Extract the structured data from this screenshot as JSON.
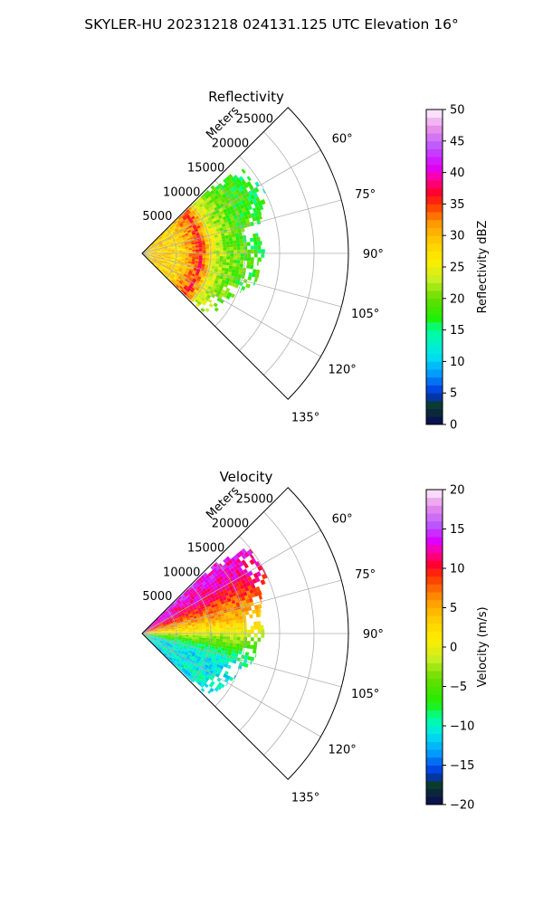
{
  "figure_title": "SKYLER-HU  20231218  024131.125 UTC Elevation 16°",
  "chart_data": [
    {
      "type": "heatmap",
      "projection": "polar-sector",
      "title": "Reflectivity",
      "radial_label": "Meters",
      "radial_ticks": [
        "5000",
        "10000",
        "15000",
        "20000",
        "25000"
      ],
      "radial_tick_values": [
        5000,
        10000,
        15000,
        20000,
        25000
      ],
      "r_max": 30000,
      "azimuth_range_deg": [
        45,
        135
      ],
      "azimuth_ticks": [
        "60°",
        "75°",
        "90°",
        "105°",
        "120°",
        "135°"
      ],
      "azimuth_tick_values": [
        60,
        75,
        90,
        105,
        120,
        135
      ],
      "data_azimuth_range_deg": [
        46,
        134
      ],
      "colorbar": {
        "label": "Reflectivity dBZ",
        "min": 0,
        "max": 50,
        "ticks": [
          "0",
          "5",
          "10",
          "15",
          "20",
          "25",
          "30",
          "35",
          "40",
          "45",
          "50"
        ],
        "tick_values": [
          0,
          5,
          10,
          15,
          20,
          25,
          30,
          35,
          40,
          45,
          50
        ],
        "stops": [
          [
            0,
            "#0a0a55"
          ],
          [
            3,
            "#0b3b2a"
          ],
          [
            5,
            "#0033dd"
          ],
          [
            8,
            "#0099ff"
          ],
          [
            11,
            "#00e5ee"
          ],
          [
            15,
            "#00ff99"
          ],
          [
            17,
            "#22ee00"
          ],
          [
            20,
            "#66dd00"
          ],
          [
            23,
            "#c8ee22"
          ],
          [
            26,
            "#ffee00"
          ],
          [
            29,
            "#ffcc00"
          ],
          [
            32,
            "#ff9900"
          ],
          [
            35,
            "#ff3300"
          ],
          [
            37,
            "#ff0033"
          ],
          [
            39,
            "#ff0099"
          ],
          [
            41,
            "#dd00ff"
          ],
          [
            44,
            "#bb55ff"
          ],
          [
            47,
            "#e890e8"
          ],
          [
            50,
            "#fff5ff"
          ]
        ]
      },
      "echo_extent": [
        {
          "azimuth": 47,
          "max_range_m": 15000
        },
        {
          "azimuth": 50,
          "max_range_m": 19000
        },
        {
          "azimuth": 53,
          "max_range_m": 19500
        },
        {
          "azimuth": 56,
          "max_range_m": 19000
        },
        {
          "azimuth": 60,
          "max_range_m": 20000
        },
        {
          "azimuth": 65,
          "max_range_m": 20000
        },
        {
          "azimuth": 70,
          "max_range_m": 18500
        },
        {
          "azimuth": 75,
          "max_range_m": 18000
        },
        {
          "azimuth": 80,
          "max_range_m": 17000
        },
        {
          "azimuth": 85,
          "max_range_m": 17500
        },
        {
          "azimuth": 90,
          "max_range_m": 18000
        },
        {
          "azimuth": 95,
          "max_range_m": 17000
        },
        {
          "azimuth": 100,
          "max_range_m": 17500
        },
        {
          "azimuth": 105,
          "max_range_m": 17000
        },
        {
          "azimuth": 110,
          "max_range_m": 15500
        },
        {
          "azimuth": 115,
          "max_range_m": 15000
        },
        {
          "azimuth": 120,
          "max_range_m": 14500
        },
        {
          "azimuth": 125,
          "max_range_m": 14000
        },
        {
          "azimuth": 130,
          "max_range_m": 13500
        },
        {
          "azimuth": 134,
          "max_range_m": 12500
        }
      ],
      "range_profile": [
        {
          "range_m": 0,
          "value": 27
        },
        {
          "range_m": 1500,
          "value": 29
        },
        {
          "range_m": 3000,
          "value": 29
        },
        {
          "range_m": 5000,
          "value": 27
        },
        {
          "range_m": 6500,
          "value": 31
        },
        {
          "range_m": 7500,
          "value": 33
        },
        {
          "range_m": 8200,
          "value": 36
        },
        {
          "range_m": 9000,
          "value": 32
        },
        {
          "range_m": 10000,
          "value": 25
        },
        {
          "range_m": 12000,
          "value": 21
        },
        {
          "range_m": 14000,
          "value": 19
        },
        {
          "range_m": 16000,
          "value": 18
        },
        {
          "range_m": 18000,
          "value": 17
        },
        {
          "range_m": 20000,
          "value": 16
        }
      ]
    },
    {
      "type": "heatmap",
      "projection": "polar-sector",
      "title": "Velocity",
      "radial_label": "Meters",
      "radial_ticks": [
        "5000",
        "10000",
        "15000",
        "20000",
        "25000"
      ],
      "radial_tick_values": [
        5000,
        10000,
        15000,
        20000,
        25000
      ],
      "r_max": 30000,
      "azimuth_range_deg": [
        45,
        135
      ],
      "azimuth_ticks": [
        "60°",
        "75°",
        "90°",
        "105°",
        "120°",
        "135°"
      ],
      "azimuth_tick_values": [
        60,
        75,
        90,
        105,
        120,
        135
      ],
      "data_azimuth_range_deg": [
        46,
        134
      ],
      "colorbar": {
        "label": "Velocity (m/s)",
        "min": -20,
        "max": 20,
        "ticks": [
          "−20",
          "−15",
          "−10",
          "−5",
          "0",
          "5",
          "10",
          "15",
          "20"
        ],
        "tick_values": [
          -20,
          -15,
          -10,
          -5,
          0,
          5,
          10,
          15,
          20
        ],
        "stops": [
          [
            -20,
            "#0a0a55"
          ],
          [
            -17.5,
            "#0b3b2a"
          ],
          [
            -16,
            "#0033dd"
          ],
          [
            -13.5,
            "#0099ff"
          ],
          [
            -11,
            "#00e5ee"
          ],
          [
            -9,
            "#00ff99"
          ],
          [
            -7,
            "#22ee00"
          ],
          [
            -4,
            "#66dd00"
          ],
          [
            -1.5,
            "#c8ee22"
          ],
          [
            1,
            "#ffee00"
          ],
          [
            3.5,
            "#ffcc00"
          ],
          [
            6,
            "#ff9900"
          ],
          [
            9,
            "#ff3300"
          ],
          [
            10.5,
            "#ff0033"
          ],
          [
            12,
            "#ff0099"
          ],
          [
            13.5,
            "#dd00ff"
          ],
          [
            15.5,
            "#bb55ff"
          ],
          [
            18,
            "#e890e8"
          ],
          [
            20,
            "#fff5ff"
          ]
        ]
      },
      "echo_extent": [
        {
          "azimuth": 47,
          "max_range_m": 15000
        },
        {
          "azimuth": 50,
          "max_range_m": 19000
        },
        {
          "azimuth": 53,
          "max_range_m": 20000
        },
        {
          "azimuth": 56,
          "max_range_m": 19500
        },
        {
          "azimuth": 60,
          "max_range_m": 20000
        },
        {
          "azimuth": 65,
          "max_range_m": 20000
        },
        {
          "azimuth": 70,
          "max_range_m": 18500
        },
        {
          "azimuth": 75,
          "max_range_m": 18000
        },
        {
          "azimuth": 80,
          "max_range_m": 17500
        },
        {
          "azimuth": 85,
          "max_range_m": 17500
        },
        {
          "azimuth": 90,
          "max_range_m": 18000
        },
        {
          "azimuth": 95,
          "max_range_m": 17000
        },
        {
          "azimuth": 100,
          "max_range_m": 17000
        },
        {
          "azimuth": 105,
          "max_range_m": 16500
        },
        {
          "azimuth": 110,
          "max_range_m": 15500
        },
        {
          "azimuth": 115,
          "max_range_m": 15000
        },
        {
          "azimuth": 120,
          "max_range_m": 14500
        },
        {
          "azimuth": 125,
          "max_range_m": 14000
        },
        {
          "azimuth": 130,
          "max_range_m": 13500
        },
        {
          "azimuth": 134,
          "max_range_m": 12000
        }
      ],
      "azimuth_profile": [
        {
          "azimuth": 46,
          "value": 14
        },
        {
          "azimuth": 52,
          "value": 13
        },
        {
          "azimuth": 60,
          "value": 12
        },
        {
          "azimuth": 68,
          "value": 9
        },
        {
          "azimuth": 76,
          "value": 6
        },
        {
          "azimuth": 83,
          "value": 3
        },
        {
          "azimuth": 89,
          "value": 0
        },
        {
          "azimuth": 95,
          "value": -4
        },
        {
          "azimuth": 102,
          "value": -8
        },
        {
          "azimuth": 110,
          "value": -11
        },
        {
          "azimuth": 118,
          "value": -11
        },
        {
          "azimuth": 126,
          "value": -10
        },
        {
          "azimuth": 134,
          "value": -12
        }
      ]
    }
  ]
}
